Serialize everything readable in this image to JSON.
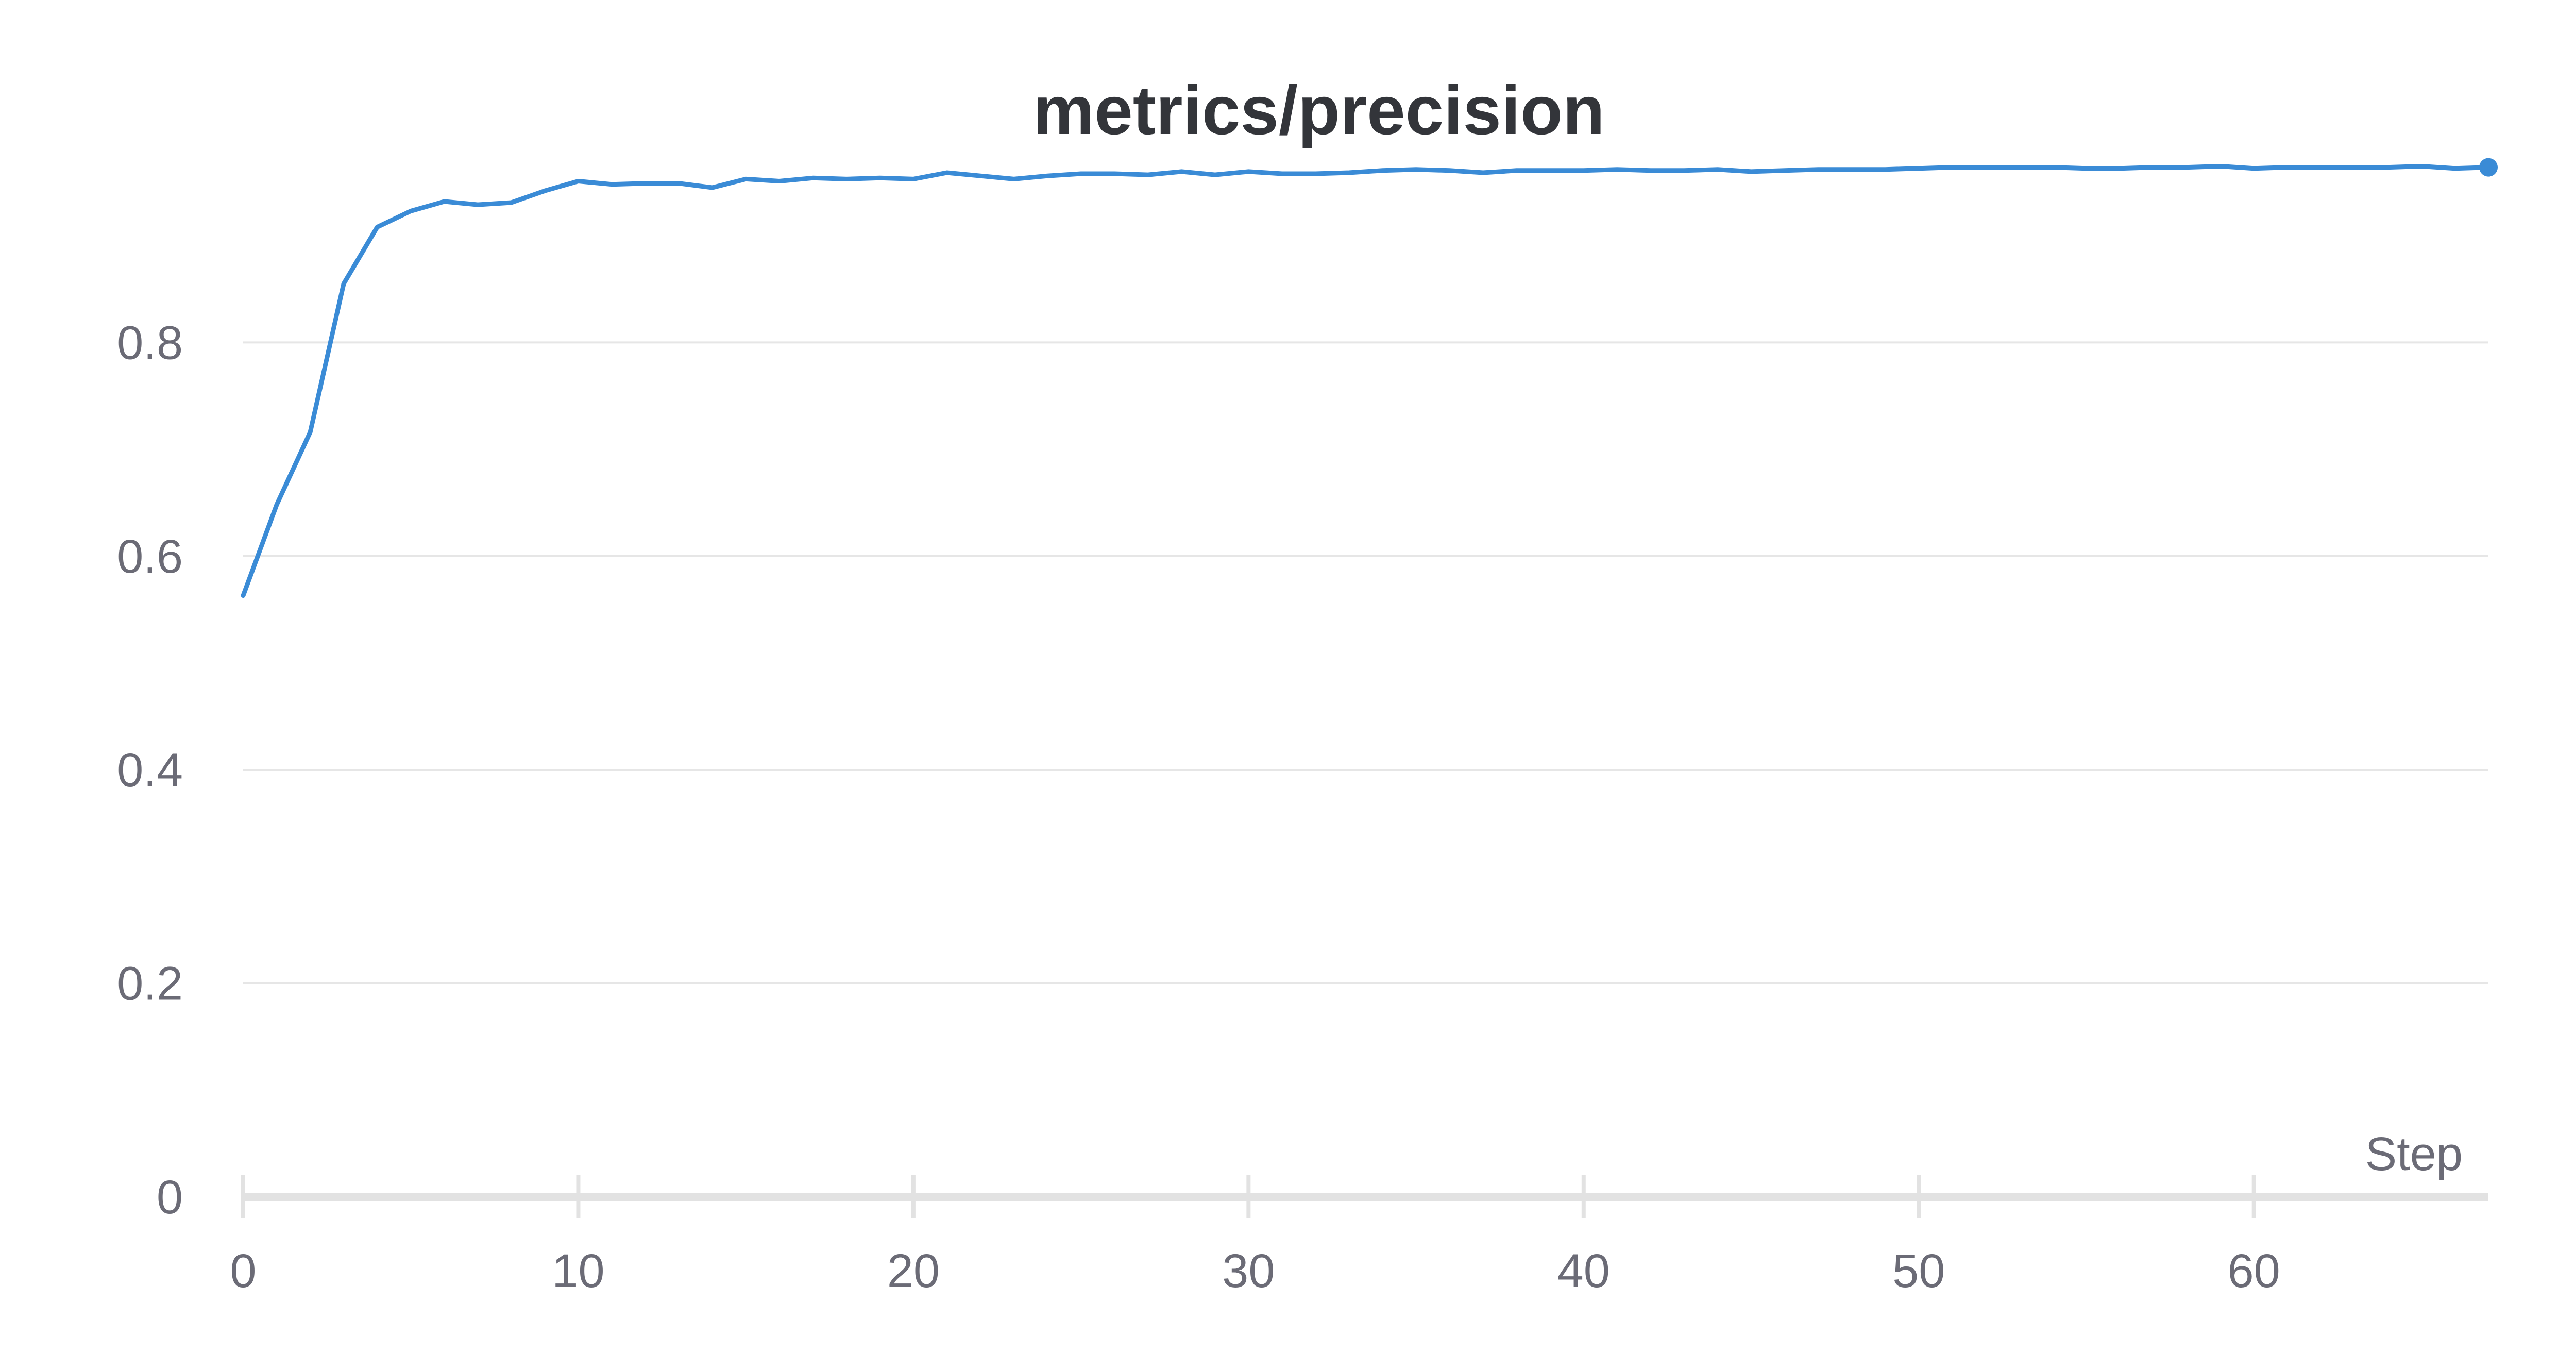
{
  "chart_data": {
    "type": "line",
    "title": "metrics/precision",
    "xlabel": "Step",
    "ylabel": "",
    "xlim": [
      0,
      67
    ],
    "ylim": [
      0,
      1
    ],
    "x_ticks": [
      0,
      10,
      20,
      30,
      40,
      50,
      60
    ],
    "y_ticks": [
      0,
      0.2,
      0.4,
      0.6,
      0.8
    ],
    "y_tick_labels": [
      "0",
      "0.2",
      "0.4",
      "0.6",
      "0.8"
    ],
    "grid": true,
    "line_color": "#3a8bd6",
    "series": [
      {
        "x": [
          0,
          1,
          2,
          3,
          4,
          5,
          6,
          7,
          8,
          9,
          10,
          11,
          12,
          13,
          14,
          15,
          16,
          17,
          18,
          19,
          20,
          21,
          22,
          23,
          24,
          25,
          26,
          27,
          28,
          29,
          30,
          31,
          32,
          33,
          34,
          35,
          36,
          37,
          38,
          39,
          40,
          41,
          42,
          43,
          44,
          45,
          46,
          47,
          48,
          49,
          50,
          51,
          52,
          53,
          54,
          55,
          56,
          57,
          58,
          59,
          60,
          61,
          62,
          63,
          64,
          65,
          66,
          67
        ],
        "values": [
          0.563,
          0.648,
          0.716,
          0.855,
          0.908,
          0.923,
          0.932,
          0.929,
          0.931,
          0.942,
          0.951,
          0.948,
          0.949,
          0.949,
          0.945,
          0.953,
          0.951,
          0.954,
          0.953,
          0.954,
          0.953,
          0.959,
          0.956,
          0.953,
          0.956,
          0.958,
          0.958,
          0.957,
          0.96,
          0.957,
          0.96,
          0.958,
          0.958,
          0.959,
          0.961,
          0.962,
          0.961,
          0.959,
          0.961,
          0.961,
          0.961,
          0.962,
          0.961,
          0.961,
          0.962,
          0.96,
          0.961,
          0.962,
          0.962,
          0.962,
          0.963,
          0.964,
          0.964,
          0.964,
          0.964,
          0.963,
          0.963,
          0.964,
          0.964,
          0.965,
          0.963,
          0.964,
          0.964,
          0.964,
          0.964,
          0.965,
          0.963,
          0.964
        ]
      }
    ]
  }
}
